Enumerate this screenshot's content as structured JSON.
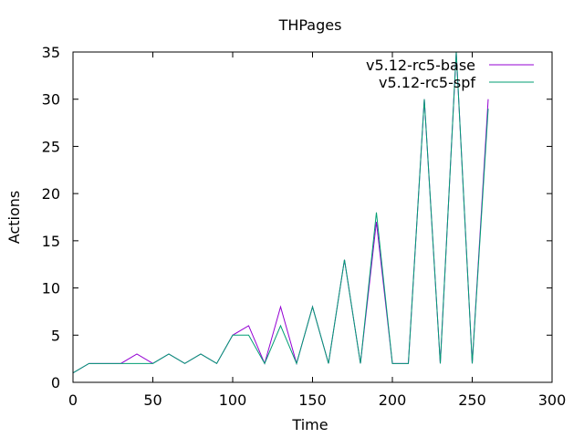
{
  "chart_data": {
    "type": "line",
    "title": "THPages",
    "xlabel": "Time",
    "ylabel": "Actions",
    "xlim": [
      0,
      300
    ],
    "ylim": [
      0,
      35
    ],
    "xticks": [
      0,
      50,
      100,
      150,
      200,
      250,
      300
    ],
    "yticks": [
      0,
      5,
      10,
      15,
      20,
      25,
      30,
      35
    ],
    "grid": false,
    "legend_position": "top-right",
    "x": [
      0,
      10,
      20,
      30,
      40,
      50,
      60,
      70,
      80,
      90,
      100,
      110,
      120,
      130,
      140,
      150,
      160,
      170,
      180,
      190,
      200,
      210,
      220,
      230,
      240,
      250,
      260
    ],
    "series": [
      {
        "name": "v5.12-rc5-base",
        "color": "#9400d3",
        "values": [
          1,
          2,
          2,
          2,
          3,
          2,
          3,
          2,
          3,
          2,
          5,
          6,
          2,
          8,
          2,
          8,
          2,
          13,
          2,
          17,
          2,
          2,
          30,
          2,
          35,
          2,
          30
        ]
      },
      {
        "name": "v5.12-rc5-spf",
        "color": "#009e73",
        "values": [
          1,
          2,
          2,
          2,
          2,
          2,
          3,
          2,
          3,
          2,
          5,
          5,
          2,
          6,
          2,
          8,
          2,
          13,
          2,
          18,
          2,
          2,
          30,
          2,
          35,
          2,
          29
        ]
      }
    ]
  }
}
